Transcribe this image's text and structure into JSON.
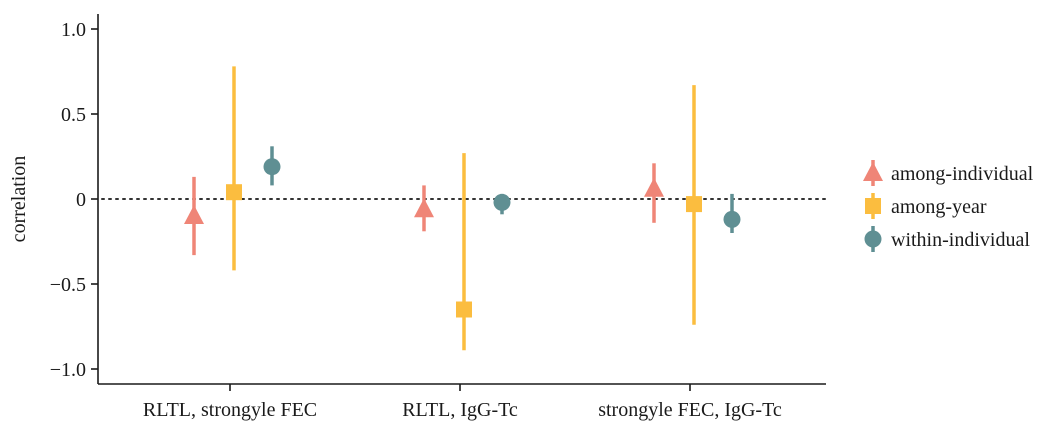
{
  "chart_data": {
    "type": "scatter",
    "ylabel": "correlation",
    "xlabel": "",
    "ylim": [
      -1.1,
      1.1
    ],
    "yticks": [
      1.0,
      0.5,
      0,
      -0.5,
      -1.0
    ],
    "ytick_labels": [
      "1.0",
      "0.5",
      "0",
      "−0.5",
      "−1.0"
    ],
    "categories": [
      "RLTL, strongyle FEC",
      "RLTL, IgG-Tc",
      "strongyle FEC, IgG-Tc"
    ],
    "reference_line": {
      "y": 0,
      "style": "dotted"
    },
    "legend_position": "right",
    "series": [
      {
        "name": "among-individual",
        "color": "#EF8577",
        "marker": "triangle",
        "points": [
          {
            "category": "RLTL, strongyle FEC",
            "y": -0.1,
            "low": -0.33,
            "high": 0.13
          },
          {
            "category": "RLTL, IgG-Tc",
            "y": -0.06,
            "low": -0.19,
            "high": 0.08
          },
          {
            "category": "strongyle FEC, IgG-Tc",
            "y": 0.06,
            "low": -0.14,
            "high": 0.21
          }
        ]
      },
      {
        "name": "among-year",
        "color": "#FBBD3F",
        "marker": "square",
        "points": [
          {
            "category": "RLTL, strongyle FEC",
            "y": 0.04,
            "low": -0.42,
            "high": 0.78
          },
          {
            "category": "RLTL, IgG-Tc",
            "y": -0.65,
            "low": -0.89,
            "high": 0.27
          },
          {
            "category": "strongyle FEC, IgG-Tc",
            "y": -0.03,
            "low": -0.74,
            "high": 0.67
          }
        ]
      },
      {
        "name": "within-individual",
        "color": "#5F8F93",
        "marker": "circle",
        "points": [
          {
            "category": "RLTL, strongyle FEC",
            "y": 0.19,
            "low": 0.08,
            "high": 0.31
          },
          {
            "category": "RLTL, IgG-Tc",
            "y": -0.02,
            "low": -0.09,
            "high": 0.03
          },
          {
            "category": "strongyle FEC, IgG-Tc",
            "y": -0.12,
            "low": -0.2,
            "high": 0.03
          }
        ]
      }
    ]
  }
}
